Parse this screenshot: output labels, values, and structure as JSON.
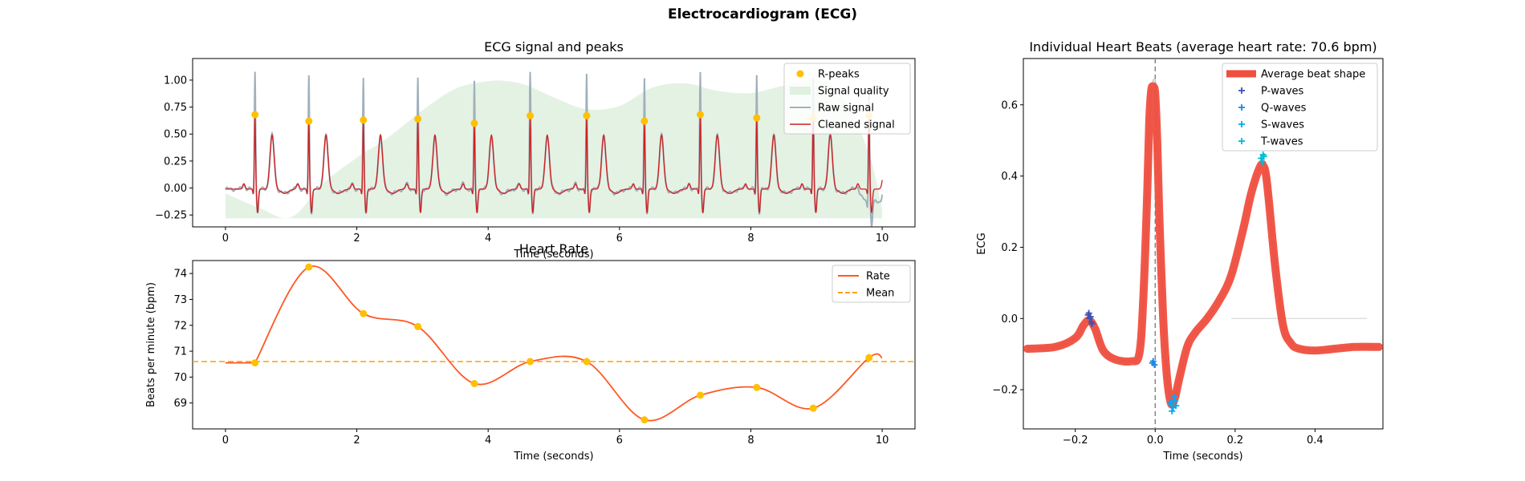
{
  "figure": {
    "title": "Electrocardiogram (ECG)"
  },
  "chart_data": [
    {
      "type": "line",
      "title": "ECG signal and peaks",
      "xlabel": "Time (seconds)",
      "ylabel": "",
      "xlim": [
        -0.5,
        10.5
      ],
      "ylim": [
        -0.36,
        1.2
      ],
      "xticks": [
        0,
        2,
        4,
        6,
        8,
        10
      ],
      "yticks": [
        -0.25,
        0.0,
        0.25,
        0.5,
        0.75,
        1.0
      ],
      "ytick_labels": [
        "−0.25",
        "0.00",
        "0.25",
        "0.50",
        "0.75",
        "1.00"
      ],
      "legend": {
        "position": "top-right",
        "entries": [
          "R-peaks",
          "Signal quality",
          "Raw signal",
          "Cleaned signal"
        ]
      },
      "r_peaks": {
        "x": [
          0.45,
          1.27,
          2.1,
          2.93,
          3.79,
          4.64,
          5.5,
          6.38,
          7.23,
          8.09,
          8.95,
          9.8
        ],
        "y": [
          0.68,
          0.62,
          0.63,
          0.64,
          0.6,
          0.67,
          0.67,
          0.62,
          0.68,
          0.65,
          0.65,
          0.67
        ]
      },
      "raw_peak_height": [
        1.1,
        1.05,
        1.02,
        1.02,
        1.0,
        1.07,
        1.07,
        1.03,
        1.1,
        1.06,
        1.05,
        1.08
      ],
      "signal_quality": {
        "x": [
          0,
          0.5,
          1.0,
          1.5,
          2.0,
          2.5,
          3.0,
          3.5,
          4.0,
          4.3,
          4.6,
          5.0,
          5.5,
          6.0,
          6.5,
          7.0,
          7.5,
          8.0,
          8.5,
          9.0,
          9.4,
          9.8,
          10.0
        ],
        "y": [
          -0.05,
          -0.18,
          -0.27,
          0.05,
          0.28,
          0.48,
          0.72,
          0.92,
          0.99,
          0.99,
          0.95,
          0.84,
          0.73,
          0.76,
          0.93,
          0.97,
          0.9,
          0.88,
          0.95,
          1.0,
          0.85,
          0.32,
          -0.2
        ]
      },
      "colors": {
        "rpeaks": "#FFC000",
        "quality": "#DFF0DF",
        "raw": "#A0B0BC",
        "cleaned": "#D02020"
      }
    },
    {
      "type": "line",
      "title": "Heart Rate",
      "xlabel": "Time (seconds)",
      "ylabel": "Beats per minute (bpm)",
      "xlim": [
        -0.5,
        10.5
      ],
      "ylim": [
        68.0,
        74.5
      ],
      "xticks": [
        0,
        2,
        4,
        6,
        8,
        10
      ],
      "yticks": [
        69,
        70,
        71,
        72,
        73,
        74
      ],
      "legend": {
        "position": "top-right",
        "entries": [
          "Rate",
          "Mean"
        ]
      },
      "rate": {
        "x": [
          0.45,
          1.27,
          2.1,
          2.93,
          3.79,
          4.64,
          5.5,
          6.38,
          7.23,
          8.09,
          8.95,
          9.8
        ],
        "y": [
          70.55,
          74.25,
          72.45,
          71.95,
          69.75,
          70.6,
          70.6,
          68.35,
          69.3,
          69.6,
          68.8,
          70.75
        ]
      },
      "start_value": 70.55,
      "end_value": 70.75,
      "mean": 70.6,
      "colors": {
        "rate": "#FF5722",
        "mean": "#FFA000",
        "points": "#FFC000"
      }
    },
    {
      "type": "line",
      "title": "Individual Heart Beats (average heart rate: 70.6 bpm)",
      "xlabel": "Time (seconds)",
      "ylabel": "ECG",
      "xlim": [
        -0.33,
        0.57
      ],
      "ylim": [
        -0.31,
        0.73
      ],
      "xticks": [
        -0.2,
        0.0,
        0.2,
        0.4
      ],
      "xtick_labels": [
        "−0.2",
        "0.0",
        "0.2",
        "0.4"
      ],
      "yticks": [
        -0.2,
        0.0,
        0.2,
        0.4,
        0.6
      ],
      "ytick_labels": [
        "−0.2",
        "0.0",
        "0.2",
        "0.4",
        "0.6"
      ],
      "legend": {
        "position": "top-right",
        "entries": [
          "Average beat shape",
          "P-waves",
          "Q-waves",
          "S-waves",
          "T-waves"
        ]
      },
      "average_beat": {
        "x": [
          -0.32,
          -0.25,
          -0.2,
          -0.18,
          -0.165,
          -0.15,
          -0.13,
          -0.1,
          -0.06,
          -0.04,
          -0.03,
          -0.02,
          -0.015,
          -0.01,
          -0.005,
          0.0,
          0.005,
          0.01,
          0.02,
          0.03,
          0.04,
          0.05,
          0.06,
          0.08,
          0.1,
          0.13,
          0.16,
          0.19,
          0.22,
          0.24,
          0.26,
          0.27,
          0.28,
          0.3,
          0.32,
          0.34,
          0.36,
          0.4,
          0.45,
          0.5,
          0.56
        ],
        "y": [
          -0.085,
          -0.08,
          -0.055,
          -0.02,
          -0.005,
          -0.03,
          -0.09,
          -0.115,
          -0.12,
          -0.1,
          0.05,
          0.35,
          0.55,
          0.64,
          0.65,
          0.63,
          0.5,
          0.3,
          0.0,
          -0.17,
          -0.24,
          -0.22,
          -0.17,
          -0.08,
          -0.04,
          0.0,
          0.05,
          0.12,
          0.25,
          0.35,
          0.42,
          0.43,
          0.38,
          0.15,
          -0.02,
          -0.07,
          -0.085,
          -0.09,
          -0.085,
          -0.08,
          -0.08
        ]
      },
      "p_waves": {
        "x": [
          -0.168,
          -0.164,
          -0.16,
          -0.166,
          -0.162,
          -0.158
        ],
        "y": [
          0.01,
          0.0,
          -0.01,
          0.015,
          0.005,
          -0.015
        ]
      },
      "q_waves": {
        "x": [
          -0.005,
          -0.002,
          -0.007
        ],
        "y": [
          -0.12,
          -0.13,
          -0.125
        ]
      },
      "s_waves": {
        "x": [
          0.04,
          0.045,
          0.05,
          0.042,
          0.047,
          0.038,
          0.052
        ],
        "y": [
          -0.24,
          -0.25,
          -0.23,
          -0.26,
          -0.22,
          -0.235,
          -0.245
        ]
      },
      "t_waves": {
        "x": [
          0.265,
          0.27,
          0.268,
          0.272
        ],
        "y": [
          0.45,
          0.46,
          0.44,
          0.455
        ]
      },
      "colors": {
        "average": "#F04E3E",
        "p": "#3F51B5",
        "q": "#1E88E5",
        "s": "#03A9F4",
        "t": "#00BCD4",
        "beats": "#BDBDBD",
        "zero_line": "#808080"
      }
    }
  ]
}
